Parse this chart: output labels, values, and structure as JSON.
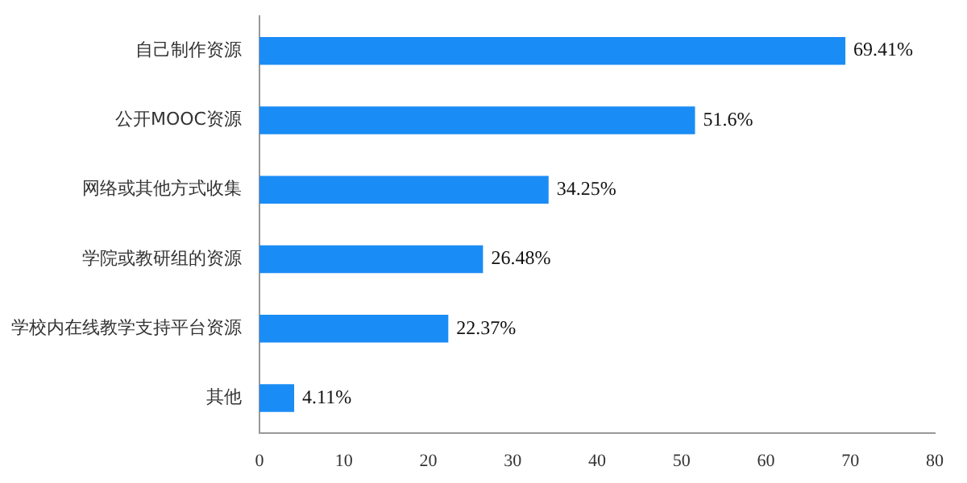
{
  "chart_data": {
    "type": "bar",
    "orientation": "horizontal",
    "categories": [
      "自己制作资源",
      "公开MOOC资源",
      "网络或其他方式收集",
      "学院或教研组的资源",
      "学校内在线教学支持平台资源",
      "其他"
    ],
    "values": [
      69.41,
      51.6,
      34.25,
      26.48,
      22.37,
      4.11
    ],
    "value_labels": [
      "69.41%",
      "51.6%",
      "34.25%",
      "26.48%",
      "22.37%",
      "4.11%"
    ],
    "color": "#1a8cf5",
    "xlim": [
      0,
      80
    ],
    "xticks": [
      0,
      10,
      20,
      30,
      40,
      50,
      60,
      70,
      80
    ],
    "grid": false,
    "legend": false
  }
}
